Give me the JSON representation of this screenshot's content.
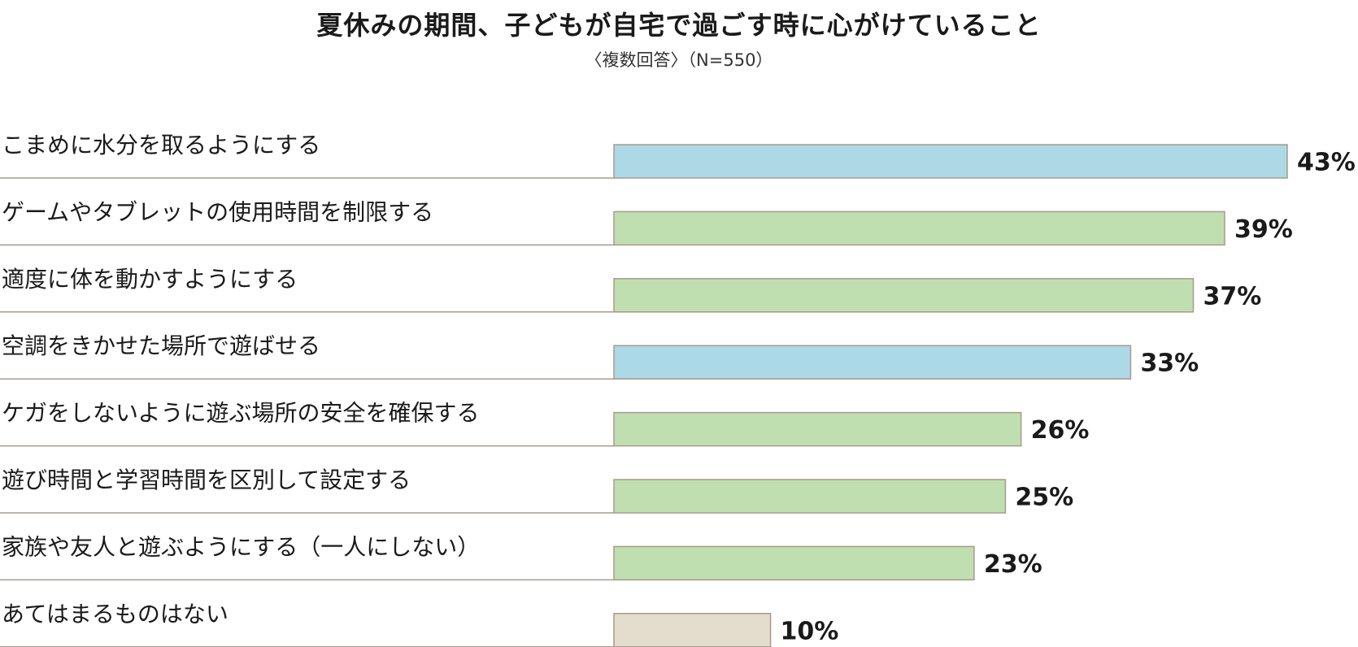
{
  "chart_data": {
    "type": "bar",
    "orientation": "horizontal",
    "title": "夏休みの期間、子どもが自宅で過ごす時に心がけていること",
    "subtitle": "〈複数回答〉（N=550）",
    "categories": [
      "こまめに水分を取るようにする",
      "ゲームやタブレットの使用時間を制限する",
      "適度に体を動かすようにする",
      "空調をきかせた場所で遊ばせる",
      "ケガをしないように遊ぶ場所の安全を確保する",
      "遊び時間と学習時間を区別して設定する",
      "家族や友人と遊ぶようにする（一人にしない）",
      "あてはまるものはない"
    ],
    "values": [
      43,
      39,
      37,
      33,
      26,
      25,
      23,
      10
    ],
    "value_labels": [
      "43%",
      "39%",
      "37%",
      "33%",
      "26%",
      "25%",
      "23%",
      "10%"
    ],
    "bar_colors": [
      "#ADD8E6",
      "#C0DFB0",
      "#C0DFB0",
      "#ADD8E6",
      "#C0DFB0",
      "#C0DFB0",
      "#C0DFB0",
      "#E3DDCD"
    ],
    "bar_border_color": "#A89A8C",
    "separator_color": "#A89A8C",
    "xlim": [
      0,
      43
    ],
    "grid": false,
    "legend": "none"
  }
}
